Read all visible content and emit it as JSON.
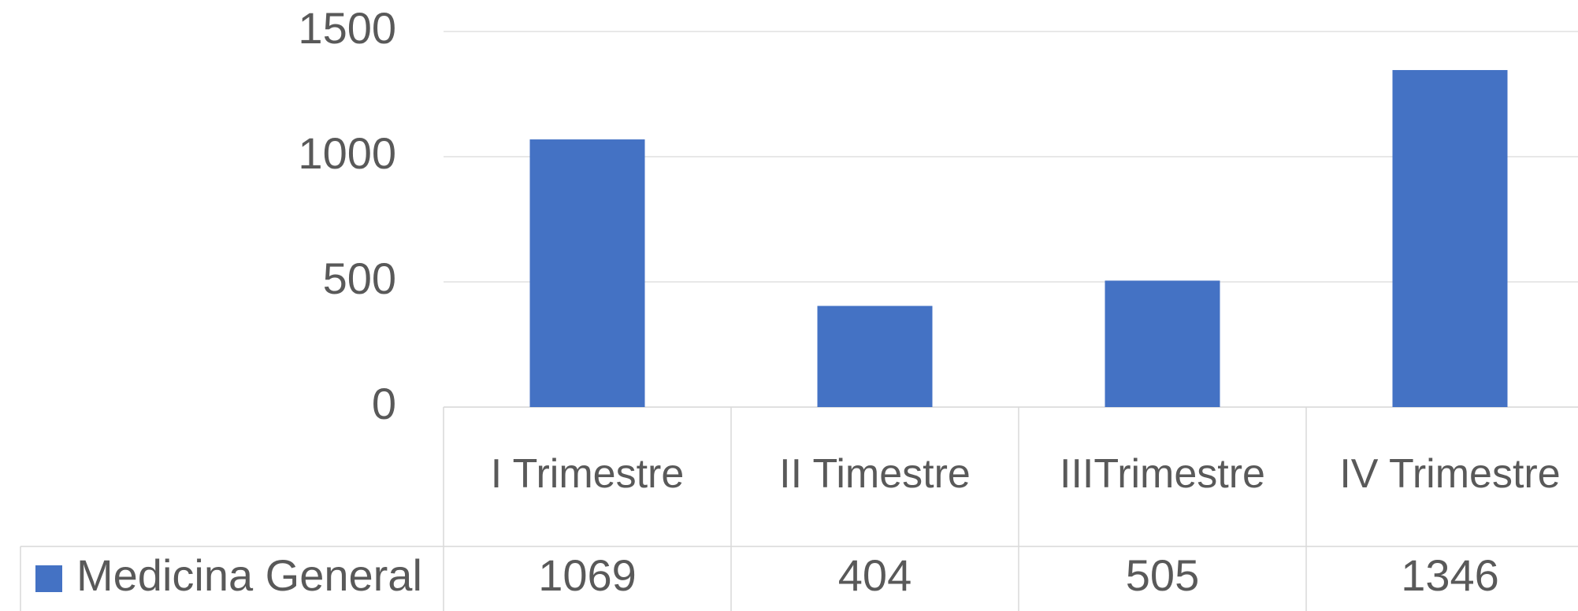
{
  "chart_data": {
    "type": "bar",
    "categories": [
      "I Trimestre",
      "II Timestre",
      "IIITrimestre",
      "IV Trimestre"
    ],
    "series": [
      {
        "name": "Medicina General",
        "color": "#4472c4",
        "values": [
          1069,
          404,
          505,
          1346
        ]
      }
    ],
    "ylim": [
      0,
      1500
    ],
    "yticks": [
      0,
      500,
      1000,
      1500
    ],
    "grid": true,
    "legend": "bottom-left"
  }
}
